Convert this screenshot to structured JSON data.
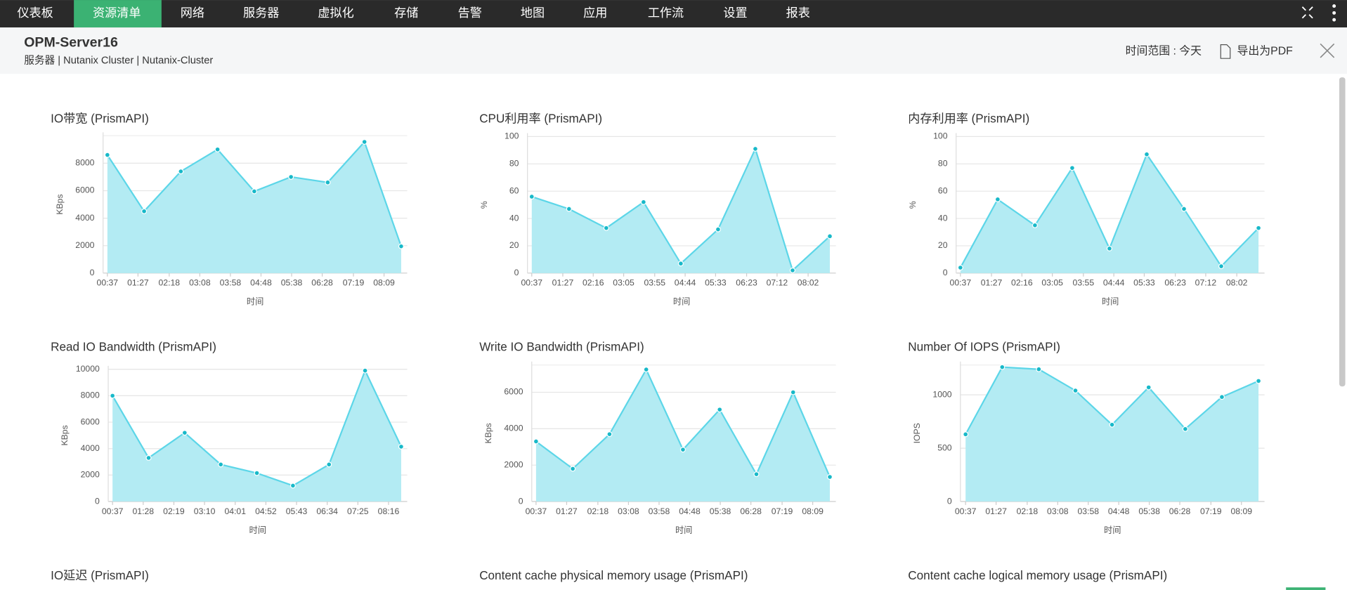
{
  "nav": [
    "仪表板",
    "资源清单",
    "网络",
    "服务器",
    "虚拟化",
    "存储",
    "告警",
    "地图",
    "应用",
    "工作流",
    "设置",
    "报表"
  ],
  "header": {
    "title": "OPM-Server16",
    "breadcrumb": "服务器 | Nutanix Cluster |  Nutanix-Cluster",
    "time_range": "时间范围 : 今天",
    "export": "导出为PDF"
  },
  "chart_data": [
    {
      "type": "area",
      "title": "IO带宽 (PrismAPI)",
      "y_label": "KBps",
      "x_label": "时间",
      "color": "#5cd6e8",
      "x": [
        37,
        97,
        157,
        217,
        277,
        337,
        397,
        457,
        517
      ],
      "values": [
        8600,
        4500,
        7400,
        9000,
        5950,
        7000,
        6600,
        9550,
        1950
      ],
      "xlim": [
        37,
        517
      ],
      "ylim": [
        0,
        10000
      ],
      "yticks": [
        0,
        2000,
        4000,
        6000,
        8000
      ],
      "xticks": [
        {
          "value": 37,
          "label": "00:37"
        },
        {
          "value": 87,
          "label": "01:27"
        },
        {
          "value": 138,
          "label": "02:18"
        },
        {
          "value": 188,
          "label": "03:08"
        },
        {
          "value": 238,
          "label": "03:58"
        },
        {
          "value": 288,
          "label": "04:48"
        },
        {
          "value": 338,
          "label": "05:38"
        },
        {
          "value": 388,
          "label": "06:28"
        },
        {
          "value": 439,
          "label": "07:19"
        },
        {
          "value": 489,
          "label": "08:09"
        }
      ]
    },
    {
      "type": "area",
      "title": "CPU利用率 (PrismAPI)",
      "y_label": "%",
      "x_label": "时间",
      "color": "#5cd6e8",
      "x": [
        37,
        97,
        157,
        217,
        277,
        337,
        397,
        457,
        517
      ],
      "values": [
        56,
        47,
        33,
        52,
        7,
        32,
        91,
        2,
        27
      ],
      "xlim": [
        37,
        517
      ],
      "ylim": [
        0,
        100
      ],
      "yticks": [
        0,
        20,
        40,
        60,
        80,
        100
      ],
      "xticks": [
        {
          "value": 37,
          "label": "00:37"
        },
        {
          "value": 87,
          "label": "01:27"
        },
        {
          "value": 136,
          "label": "02:16"
        },
        {
          "value": 185,
          "label": "03:05"
        },
        {
          "value": 235,
          "label": "03:55"
        },
        {
          "value": 284,
          "label": "04:44"
        },
        {
          "value": 333,
          "label": "05:33"
        },
        {
          "value": 383,
          "label": "06:23"
        },
        {
          "value": 432,
          "label": "07:12"
        },
        {
          "value": 482,
          "label": "08:02"
        }
      ]
    },
    {
      "type": "area",
      "title": "内存利用率 (PrismAPI)",
      "y_label": "%",
      "x_label": "时间",
      "color": "#5cd6e8",
      "x": [
        37,
        97,
        157,
        217,
        277,
        337,
        397,
        457,
        517
      ],
      "values": [
        4,
        54,
        35,
        77,
        18,
        87,
        47,
        5,
        33
      ],
      "xlim": [
        37,
        517
      ],
      "ylim": [
        0,
        100
      ],
      "yticks": [
        0,
        20,
        40,
        60,
        80,
        100
      ],
      "xticks": [
        {
          "value": 37,
          "label": "00:37"
        },
        {
          "value": 87,
          "label": "01:27"
        },
        {
          "value": 136,
          "label": "02:16"
        },
        {
          "value": 185,
          "label": "03:05"
        },
        {
          "value": 235,
          "label": "03:55"
        },
        {
          "value": 284,
          "label": "04:44"
        },
        {
          "value": 333,
          "label": "05:33"
        },
        {
          "value": 383,
          "label": "06:23"
        },
        {
          "value": 432,
          "label": "07:12"
        },
        {
          "value": 482,
          "label": "08:02"
        }
      ]
    },
    {
      "type": "area",
      "title": "Read IO Bandwidth (PrismAPI)",
      "y_label": "KBps",
      "x_label": "时间",
      "color": "#5cd6e8",
      "x": [
        37,
        97,
        157,
        217,
        277,
        337,
        397,
        457,
        517
      ],
      "values": [
        8000,
        3300,
        5200,
        2800,
        2150,
        1200,
        2800,
        9900,
        4150
      ],
      "xlim": [
        37,
        517
      ],
      "ylim": [
        0,
        10000
      ],
      "yticks": [
        0,
        2000,
        4000,
        6000,
        8000,
        10000
      ],
      "xticks": [
        {
          "value": 37,
          "label": "00:37"
        },
        {
          "value": 88,
          "label": "01:28"
        },
        {
          "value": 139,
          "label": "02:19"
        },
        {
          "value": 190,
          "label": "03:10"
        },
        {
          "value": 241,
          "label": "04:01"
        },
        {
          "value": 292,
          "label": "04:52"
        },
        {
          "value": 343,
          "label": "05:43"
        },
        {
          "value": 394,
          "label": "06:34"
        },
        {
          "value": 445,
          "label": "07:25"
        },
        {
          "value": 496,
          "label": "08:16"
        }
      ]
    },
    {
      "type": "area",
      "title": "Write IO Bandwidth (PrismAPI)",
      "y_label": "KBps",
      "x_label": "时间",
      "color": "#5cd6e8",
      "x": [
        37,
        97,
        157,
        217,
        277,
        337,
        397,
        457,
        517
      ],
      "values": [
        3300,
        1800,
        3700,
        7250,
        2850,
        5050,
        1500,
        6000,
        1350
      ],
      "xlim": [
        37,
        517
      ],
      "ylim": [
        0,
        7500
      ],
      "yticks": [
        0,
        2000,
        4000,
        6000
      ],
      "xticks": [
        {
          "value": 37,
          "label": "00:37"
        },
        {
          "value": 87,
          "label": "01:27"
        },
        {
          "value": 138,
          "label": "02:18"
        },
        {
          "value": 188,
          "label": "03:08"
        },
        {
          "value": 238,
          "label": "03:58"
        },
        {
          "value": 288,
          "label": "04:48"
        },
        {
          "value": 338,
          "label": "05:38"
        },
        {
          "value": 388,
          "label": "06:28"
        },
        {
          "value": 439,
          "label": "07:19"
        },
        {
          "value": 489,
          "label": "08:09"
        }
      ]
    },
    {
      "type": "area",
      "title": "Number Of IOPS (PrismAPI)",
      "y_label": "IOPS",
      "x_label": "时间",
      "color": "#5cd6e8",
      "x": [
        37,
        97,
        157,
        217,
        277,
        337,
        397,
        457,
        517
      ],
      "values": [
        630,
        1260,
        1240,
        1040,
        720,
        1070,
        680,
        980,
        1130
      ],
      "xlim": [
        37,
        517
      ],
      "ylim": [
        0,
        1280
      ],
      "yticks": [
        0,
        500,
        1000
      ],
      "xticks": [
        {
          "value": 37,
          "label": "00:37"
        },
        {
          "value": 87,
          "label": "01:27"
        },
        {
          "value": 138,
          "label": "02:18"
        },
        {
          "value": 188,
          "label": "03:08"
        },
        {
          "value": 238,
          "label": "03:58"
        },
        {
          "value": 288,
          "label": "04:48"
        },
        {
          "value": 338,
          "label": "05:38"
        },
        {
          "value": 388,
          "label": "06:28"
        },
        {
          "value": 439,
          "label": "07:19"
        },
        {
          "value": 489,
          "label": "08:09"
        }
      ]
    }
  ],
  "more_charts": [
    "IO延迟 (PrismAPI)",
    "Content cache physical memory usage (PrismAPI)",
    "Content cache logical memory usage (PrismAPI)"
  ]
}
